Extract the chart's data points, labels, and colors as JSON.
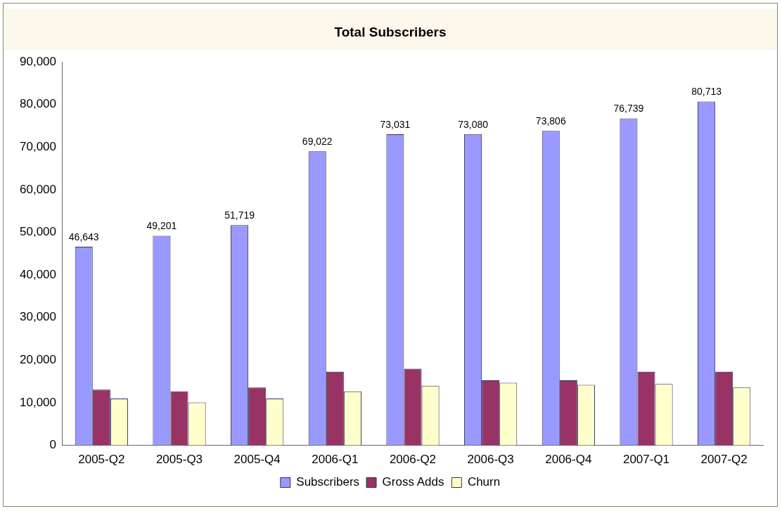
{
  "chart_data": {
    "type": "bar",
    "title": "Total Subscribers",
    "categories": [
      "2005-Q2",
      "2005-Q3",
      "2005-Q4",
      "2006-Q1",
      "2006-Q2",
      "2006-Q3",
      "2006-Q4",
      "2007-Q1",
      "2007-Q2"
    ],
    "series": [
      {
        "name": "Subscribers",
        "color": "#9999ff",
        "values": [
          46643,
          49201,
          51719,
          69022,
          73031,
          73080,
          73806,
          76739,
          80713
        ],
        "value_labels": [
          "46,643",
          "49,201",
          "51,719",
          "69,022",
          "73,031",
          "73,080",
          "73,806",
          "76,739",
          "80,713"
        ]
      },
      {
        "name": "Gross Adds",
        "color": "#993366",
        "values": [
          13100,
          12700,
          13600,
          17300,
          18000,
          15300,
          15300,
          17300,
          17300
        ]
      },
      {
        "name": "Churn",
        "color": "#ffffcc",
        "values": [
          11000,
          10100,
          11000,
          12700,
          14000,
          14700,
          14200,
          14400,
          13600
        ]
      }
    ],
    "ylim": [
      0,
      90000
    ],
    "yticks": [
      0,
      {
        "value": 10000,
        "label": "10,000"
      },
      {
        "value": 20000,
        "label": "20,000"
      },
      {
        "value": 30000,
        "label": "30,000"
      },
      {
        "value": 40000,
        "label": "40,000"
      },
      {
        "value": 50000,
        "label": "50,000"
      },
      {
        "value": 60000,
        "label": "60,000"
      },
      {
        "value": 70000,
        "label": "70,000"
      },
      {
        "value": 80000,
        "label": "80,000"
      },
      {
        "value": 90000,
        "label": "90,000"
      }
    ],
    "grid": false,
    "legend": "bottom"
  }
}
